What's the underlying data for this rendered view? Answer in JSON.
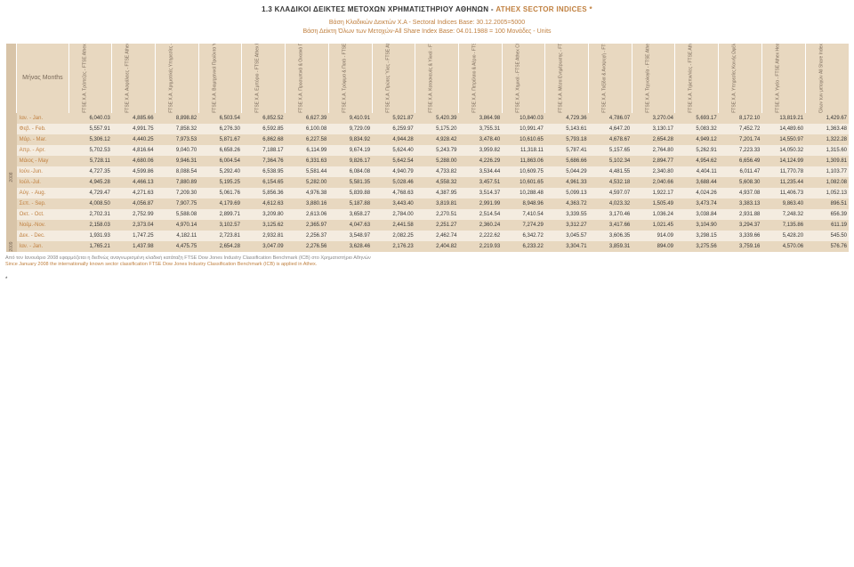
{
  "title_prefix": "1.3  ΚΛΑΔΙΚΟΙ ΔΕΙΚΤΕΣ ΜΕΤΟΧΩΝ ΧΡΗΜΑΤΙΣΤΗΡΙΟΥ ΑΘΗΝΩΝ  -  ",
  "title_highlight": "ATHEX SECTOR INDICES *",
  "base_line1": "Βάση Κλαδικών Δεικτών Χ.Α - Sectoral Indices Base: 30.12.2005=5000",
  "base_line2": "Βάση Δείκτη Όλων των Μετοχών-All Share Index Base: 04.01.1988 = 100  Μονάδες - Units",
  "months_header": "Μήνας\nMonths",
  "columns": [
    "FTSE Χ.Α. Τράπεζες - FTSE Athex Banks",
    "FTSE Χ.Α. Ασφάλειες - FTSE Athex Insurance",
    "FTSE Χ.Α. Χρηματ/κές Υπηρεσίες - FTSE Athex Financial Services",
    "FTSE Χ.Α. Βιομηχανικά Προϊόντα Υπηρεσίες -FTSE Athex Industrial Goods & Services",
    "FTSE Χ.Α. Εμπόριο - FTSE Athex Retail",
    "FTSE Χ.Α. Προσωπικά & Οικιακά Προϊόντα - FTSE Athex Personal & Household Goods",
    "FTSE Χ.Α. Τρόφιμα & Ποτά - FTSE Athex Food & Beverage",
    "FTSE Χ.Α. Πρώτες Ύλες - FTSE Athex Basic Resources",
    "FTSE Χ.Α. Κατασκευές & Υλικά - FTSE Athex Construction & Materials",
    "FTSE Χ.Α. Πετρέλαιο & Αέριο - FTSE Athex Oil & Gas",
    "FTSE Χ.Α. Χημικά - FTSE Athex Chemicals",
    "FTSE Χ.Α. Μέσα Ενημέρωσης - FTSE Athex Media",
    "FTSE Χ.Α. Ταξίδια & Αναψυχή - FTSE Athex Travel & Leisure",
    "FTSE Χ.Α. Τεχνολογία - FTSE Athex Technology",
    "FTSE Χ.Α. Τηλεπικ/νίες - FTSE Athex Telecommunications",
    "FTSE Χ.Α. Υπηρεσίες Κοινής Ωφέλειας - FTSE Athex Utilities",
    "FTSE Χ.Α. Υγεία - FTSE Athex Health Care",
    "Όλων των μετοχών All Share Index"
  ],
  "year2008": "2008",
  "year2009": "2009",
  "rows": [
    {
      "band": "hi",
      "month": "Ιαν. - Jan.",
      "v": [
        "6,040.03",
        "4,885.66",
        "8,898.82",
        "6,503.54",
        "6,852.52",
        "6,627.39",
        "9,410.91",
        "5,921.87",
        "5,420.39",
        "3,864.98",
        "10,840.03",
        "4,729.36",
        "4,786.07",
        "3,270.04",
        "5,693.17",
        "8,172.10",
        "13,819.21",
        "1,429.67"
      ]
    },
    {
      "band": "lo",
      "month": "Φεβ. - Feb.",
      "v": [
        "5,557.91",
        "4,991.75",
        "7,858.32",
        "6,276.30",
        "6,592.85",
        "6,100.08",
        "9,729.09",
        "6,259.97",
        "5,175.20",
        "3,755.31",
        "10,991.47",
        "5,143.61",
        "4,647.20",
        "3,130.17",
        "5,083.32",
        "7,452.72",
        "14,489.60",
        "1,363.48"
      ]
    },
    {
      "band": "hi",
      "month": "Μάρ. - Mar.",
      "v": [
        "5,306.12",
        "4,440.25",
        "7,973.53",
        "5,871.67",
        "6,862.68",
        "6,227.58",
        "9,834.92",
        "4,944.28",
        "4,928.42",
        "3,478.40",
        "10,610.65",
        "5,793.18",
        "4,678.67",
        "2,654.28",
        "4,949.12",
        "7,201.74",
        "14,550.97",
        "1,322.28"
      ]
    },
    {
      "band": "lo",
      "month": "Απρ. - Apr.",
      "v": [
        "5,702.53",
        "4,816.64",
        "9,040.70",
        "6,658.26",
        "7,188.17",
        "6,114.99",
        "9,674.19",
        "5,624.40",
        "5,243.79",
        "3,959.82",
        "11,318.11",
        "5,787.41",
        "5,157.65",
        "2,764.80",
        "5,262.91",
        "7,223.33",
        "14,050.32",
        "1,315.60"
      ]
    },
    {
      "band": "hi",
      "month": "Μάιος - May",
      "v": [
        "5,728.11",
        "4,680.06",
        "9,946.31",
        "6,004.54",
        "7,364.76",
        "6,331.63",
        "9,826.17",
        "5,642.54",
        "5,288.00",
        "4,226.29",
        "11,863.06",
        "5,686.66",
        "5,102.34",
        "2,894.77",
        "4,954.62",
        "6,656.49",
        "14,124.99",
        "1,309.81"
      ]
    },
    {
      "band": "lo",
      "month": "Ιούν.-Jun.",
      "v": [
        "4,727.35",
        "4,599.86",
        "8,088.54",
        "5,292.40",
        "6,538.95",
        "5,581.44",
        "6,084.08",
        "4,940.79",
        "4,733.82",
        "3,534.44",
        "10,609.75",
        "5,044.29",
        "4,481.55",
        "2,340.80",
        "4,404.11",
        "6,011.47",
        "11,770.78",
        "1,103.77"
      ]
    },
    {
      "band": "hi",
      "month": "Ιούλ.-Jul.",
      "v": [
        "4,945.28",
        "4,466.13",
        "7,880.89",
        "5,195.25",
        "6,154.65",
        "5,282.00",
        "5,581.35",
        "5,028.46",
        "4,558.32",
        "3,457.51",
        "10,601.65",
        "4,961.33",
        "4,532.18",
        "2,040.66",
        "3,688.44",
        "5,608.30",
        "11,235.44",
        "1,082.08"
      ]
    },
    {
      "band": "lo",
      "month": "Αύγ. - Aug.",
      "v": [
        "4,729.47",
        "4,271.63",
        "7,209.30",
        "5,061.76",
        "5,856.36",
        "4,976.38",
        "5,839.88",
        "4,768.63",
        "4,387.95",
        "3,514.37",
        "10,288.48",
        "5,099.13",
        "4,597.07",
        "1,922.17",
        "4,024.26",
        "4,937.08",
        "11,406.73",
        "1,052.13"
      ]
    },
    {
      "band": "hi",
      "month": "Σεπ. - Sep.",
      "v": [
        "4,008.50",
        "4,056.87",
        "7,907.75",
        "4,179.69",
        "4,612.63",
        "3,880.16",
        "5,187.88",
        "3,443.40",
        "3,819.81",
        "2,991.99",
        "8,948.96",
        "4,363.72",
        "4,023.32",
        "1,505.49",
        "3,473.74",
        "3,383.13",
        "9,863.40",
        "896.51"
      ]
    },
    {
      "band": "lo",
      "month": "Οκτ. - Oct.",
      "v": [
        "2,702.31",
        "2,752.99",
        "5,588.08",
        "2,899.71",
        "3,209.80",
        "2,613.06",
        "3,658.27",
        "2,784.00",
        "2,270.51",
        "2,514.54",
        "7,410.54",
        "3,339.55",
        "3,170.46",
        "1,036.24",
        "3,038.84",
        "2,931.88",
        "7,248.32",
        "656.39"
      ]
    },
    {
      "band": "hi",
      "month": "Νοέμ.-Nov.",
      "v": [
        "2,158.03",
        "2,373.04",
        "4,970.14",
        "3,102.57",
        "3,125.62",
        "2,365.97",
        "4,047.63",
        "2,441.58",
        "2,251.27",
        "2,360.24",
        "7,274.29",
        "3,312.27",
        "3,417.66",
        "1,021.45",
        "3,104.90",
        "3,294.37",
        "7,135.86",
        "611.19"
      ]
    },
    {
      "band": "lo",
      "month": "Δεκ. - Dec.",
      "v": [
        "1,931.93",
        "1,747.25",
        "4,182.11",
        "2,723.81",
        "2,932.81",
        "2,256.37",
        "3,548.97",
        "2,082.25",
        "2,462.74",
        "2,222.62",
        "6,342.72",
        "3,045.57",
        "3,606.35",
        "914.09",
        "3,298.15",
        "3,339.66",
        "5,428.20",
        "545.50"
      ]
    }
  ],
  "row2009": {
    "band": "hi",
    "month": "Ιαν. - Jan.",
    "v": [
      "1,765.21",
      "1,437.98",
      "4,475.75",
      "2,654.28",
      "3,047.09",
      "2,276.56",
      "3,628.46",
      "2,176.23",
      "2,404.82",
      "2,219.93",
      "6,233.22",
      "3,304.71",
      "3,859.31",
      "894.09",
      "3,275.56",
      "3,759.16",
      "4,570.06",
      "576.76"
    ]
  },
  "footnote_gr": "Από τον Ιανουάριο 2008  εφαρμόζεται η διεθνώς αναγνωρισμένη κλαδική κατάταξη FTSE Dow Jones Industry Classification Benchmark (ICB) στο Χρηματιστήριο Αθηνών",
  "footnote_en": "Since January 2008 the internationally known sector classification  FTSE Dow Jones Industry Classification Benchmark (ICB)  is applied in Athex.",
  "asterisk": "*"
}
